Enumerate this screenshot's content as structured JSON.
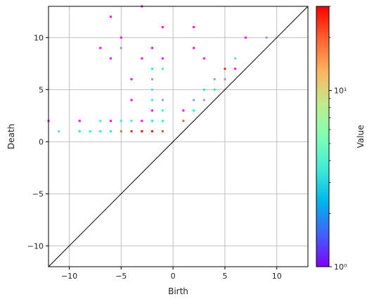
{
  "chart_data": {
    "type": "heatmap",
    "xlabel": "Birth",
    "ylabel": "Death",
    "xlim": [
      -12,
      13
    ],
    "ylim": [
      -12,
      13
    ],
    "xticks": [
      -10,
      -5,
      0,
      5,
      10
    ],
    "yticks": [
      -10,
      -5,
      0,
      5,
      10
    ],
    "grid": true,
    "diagonal_line": true,
    "colorbar": {
      "label": "Value",
      "scale": "log",
      "range": [
        1,
        30
      ],
      "tick_labels": [
        {
          "value": 1,
          "label": "10⁰"
        },
        {
          "value": 10,
          "label": "10¹"
        }
      ],
      "colormap": "rainbow"
    },
    "points": [
      {
        "x": -12,
        "y": 2,
        "v": 1
      },
      {
        "x": -11,
        "y": 1,
        "v": 3
      },
      {
        "x": -9,
        "y": 2,
        "v": 1
      },
      {
        "x": -9,
        "y": 1,
        "v": 5
      },
      {
        "x": -8,
        "y": 1,
        "v": 4
      },
      {
        "x": -7,
        "y": 2,
        "v": 4
      },
      {
        "x": -7,
        "y": 1,
        "v": 5
      },
      {
        "x": -7,
        "y": 9,
        "v": 1
      },
      {
        "x": -6,
        "y": 12,
        "v": 1
      },
      {
        "x": -6,
        "y": 8,
        "v": 1
      },
      {
        "x": -6,
        "y": 2,
        "v": 1
      },
      {
        "x": -6,
        "y": 1,
        "v": 5
      },
      {
        "x": -5,
        "y": 10,
        "v": 1
      },
      {
        "x": -5,
        "y": 9,
        "v": 2
      },
      {
        "x": -5,
        "y": 2,
        "v": 4
      },
      {
        "x": -5,
        "y": 1,
        "v": 15
      },
      {
        "x": -4,
        "y": 6,
        "v": 1
      },
      {
        "x": -4,
        "y": 4,
        "v": 1
      },
      {
        "x": -4,
        "y": 2,
        "v": 3
      },
      {
        "x": -4,
        "y": 1,
        "v": 25
      },
      {
        "x": -3,
        "y": 13,
        "v": 1
      },
      {
        "x": -3,
        "y": 8,
        "v": 1
      },
      {
        "x": -3,
        "y": 2,
        "v": 1
      },
      {
        "x": -3,
        "y": 1,
        "v": 30
      },
      {
        "x": -2,
        "y": 9,
        "v": 1
      },
      {
        "x": -2,
        "y": 7,
        "v": 5
      },
      {
        "x": -2,
        "y": 6,
        "v": 2
      },
      {
        "x": -2,
        "y": 5,
        "v": 3
      },
      {
        "x": -2,
        "y": 4,
        "v": 4
      },
      {
        "x": -2,
        "y": 3,
        "v": 1
      },
      {
        "x": -2,
        "y": 2,
        "v": 5
      },
      {
        "x": -2,
        "y": 1,
        "v": 30
      },
      {
        "x": -1,
        "y": 11,
        "v": 1
      },
      {
        "x": -1,
        "y": 8,
        "v": 1
      },
      {
        "x": -1,
        "y": 7,
        "v": 3
      },
      {
        "x": -1,
        "y": 4,
        "v": 2
      },
      {
        "x": -1,
        "y": 3,
        "v": 4
      },
      {
        "x": -1,
        "y": 2,
        "v": 5
      },
      {
        "x": -1,
        "y": 1,
        "v": 20
      },
      {
        "x": 1,
        "y": 3,
        "v": 1
      },
      {
        "x": 1,
        "y": 2,
        "v": 18
      },
      {
        "x": 2,
        "y": 11,
        "v": 1
      },
      {
        "x": 2,
        "y": 9,
        "v": 1
      },
      {
        "x": 2,
        "y": 4,
        "v": 2
      },
      {
        "x": 2,
        "y": 3,
        "v": 6
      },
      {
        "x": 3,
        "y": 8,
        "v": 1
      },
      {
        "x": 3,
        "y": 5,
        "v": 6
      },
      {
        "x": 3,
        "y": 4,
        "v": 2
      },
      {
        "x": 4,
        "y": 6,
        "v": 2
      },
      {
        "x": 4,
        "y": 5,
        "v": 7
      },
      {
        "x": 5,
        "y": 7,
        "v": 25
      },
      {
        "x": 5,
        "y": 6,
        "v": 2
      },
      {
        "x": 6,
        "y": 8,
        "v": 3
      },
      {
        "x": 6,
        "y": 7,
        "v": 1
      },
      {
        "x": 7,
        "y": 10,
        "v": 1
      },
      {
        "x": 9,
        "y": 10,
        "v": 2
      }
    ]
  }
}
